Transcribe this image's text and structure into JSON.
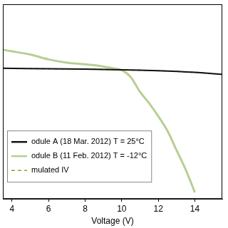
{
  "chart_data": {
    "type": "line",
    "x_label": "Voltage (V)",
    "xlim": [
      3.5,
      15.5
    ],
    "xticks": [
      4,
      6,
      8,
      10,
      12,
      14
    ],
    "ylim": [
      -1,
      5
    ],
    "tick_labels": "x",
    "grid": false,
    "legend": "lower left",
    "series": [
      {
        "name": "odule A (18 Mar. 2012) T = 25°C",
        "color": "#111111",
        "line_style": "solid",
        "x": [
          3.5,
          6,
          8,
          10,
          12,
          14,
          15.5
        ],
        "values": [
          3.03,
          3.01,
          3.0,
          2.98,
          2.95,
          2.9,
          2.84
        ]
      },
      {
        "name": "odule B (11 Feb. 2012) T = -12°C",
        "color": "#b7cf93",
        "line_style": "solid",
        "x": [
          3.5,
          4,
          5,
          6,
          7,
          8,
          8.5,
          9,
          9.5,
          10,
          10.5,
          11,
          11.5,
          12,
          12.5,
          13,
          13.5,
          14
        ],
        "values": [
          3.6,
          3.55,
          3.45,
          3.3,
          3.2,
          3.15,
          3.12,
          3.08,
          3.03,
          2.97,
          2.75,
          2.3,
          1.95,
          1.55,
          1.1,
          0.5,
          -0.1,
          -0.8
        ]
      },
      {
        "name": "mulated IV",
        "color": "#9a9a30",
        "line_style": "dashed",
        "x": [
          3.5,
          6,
          8,
          10,
          12,
          14,
          15.5
        ],
        "values": [
          3.03,
          3.01,
          3.0,
          2.98,
          2.95,
          2.9,
          2.84
        ]
      }
    ]
  }
}
